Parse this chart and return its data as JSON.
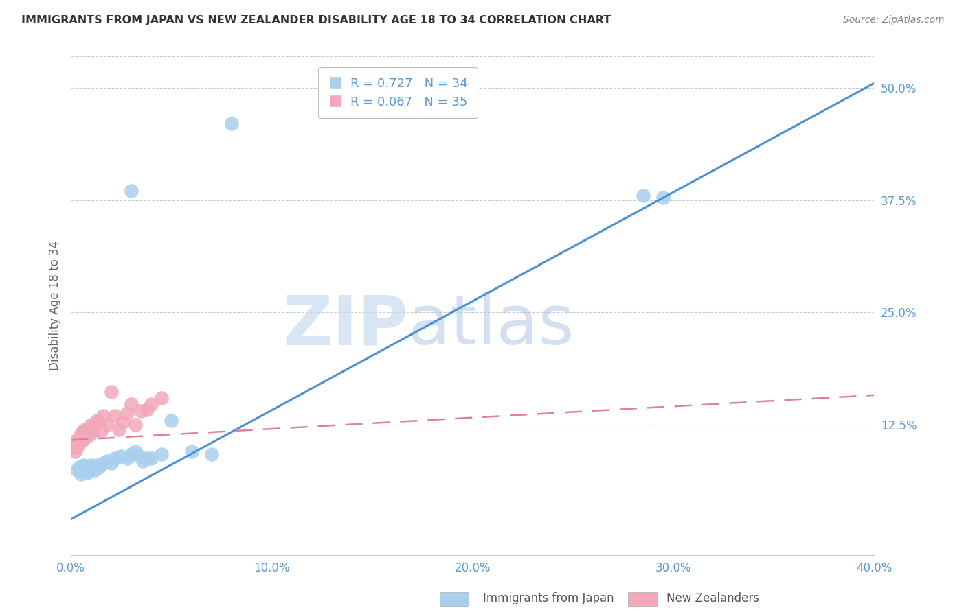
{
  "title": "IMMIGRANTS FROM JAPAN VS NEW ZEALANDER DISABILITY AGE 18 TO 34 CORRELATION CHART",
  "source": "Source: ZipAtlas.com",
  "ylabel": "Disability Age 18 to 34",
  "xlim": [
    0.0,
    0.4
  ],
  "ylim": [
    -0.02,
    0.535
  ],
  "xticks": [
    0.0,
    0.1,
    0.2,
    0.3,
    0.4
  ],
  "yticks_right": [
    0.125,
    0.25,
    0.375,
    0.5
  ],
  "ytick_labels_right": [
    "12.5%",
    "25.0%",
    "37.5%",
    "50.0%"
  ],
  "xtick_labels": [
    "0.0%",
    "10.0%",
    "20.0%",
    "30.0%",
    "40.0%"
  ],
  "blue_R": 0.727,
  "blue_N": 34,
  "pink_R": 0.067,
  "pink_N": 35,
  "legend_label_blue": "Immigrants from Japan",
  "legend_label_pink": "New Zealanders",
  "blue_color": "#A8CFEE",
  "pink_color": "#F2A8B8",
  "blue_line_color": "#4A90D9",
  "pink_line_color": "#E08098",
  "background_color": "#ffffff",
  "watermark_zip": "ZIP",
  "watermark_atlas": "atlas",
  "blue_scatter_x": [
    0.003,
    0.004,
    0.005,
    0.005,
    0.006,
    0.007,
    0.008,
    0.009,
    0.01,
    0.011,
    0.012,
    0.013,
    0.014,
    0.015,
    0.016,
    0.018,
    0.02,
    0.022,
    0.025,
    0.028,
    0.03,
    0.032,
    0.034,
    0.036,
    0.038,
    0.04,
    0.045,
    0.05,
    0.06,
    0.07,
    0.08,
    0.03,
    0.285,
    0.295
  ],
  "blue_scatter_y": [
    0.075,
    0.078,
    0.075,
    0.07,
    0.08,
    0.078,
    0.072,
    0.075,
    0.08,
    0.078,
    0.075,
    0.08,
    0.078,
    0.08,
    0.082,
    0.085,
    0.082,
    0.088,
    0.09,
    0.088,
    0.092,
    0.095,
    0.09,
    0.085,
    0.088,
    0.088,
    0.092,
    0.13,
    0.095,
    0.092,
    0.46,
    0.385,
    0.38,
    0.378
  ],
  "pink_scatter_x": [
    0.002,
    0.002,
    0.003,
    0.003,
    0.004,
    0.004,
    0.005,
    0.005,
    0.006,
    0.006,
    0.007,
    0.007,
    0.008,
    0.008,
    0.009,
    0.01,
    0.01,
    0.011,
    0.012,
    0.013,
    0.014,
    0.015,
    0.016,
    0.018,
    0.02,
    0.022,
    0.024,
    0.026,
    0.028,
    0.03,
    0.032,
    0.035,
    0.038,
    0.04,
    0.045
  ],
  "pink_scatter_y": [
    0.095,
    0.1,
    0.1,
    0.108,
    0.105,
    0.11,
    0.11,
    0.115,
    0.108,
    0.118,
    0.115,
    0.12,
    0.112,
    0.118,
    0.12,
    0.115,
    0.125,
    0.118,
    0.125,
    0.13,
    0.128,
    0.118,
    0.135,
    0.125,
    0.162,
    0.135,
    0.12,
    0.128,
    0.138,
    0.148,
    0.125,
    0.14,
    0.142,
    0.148,
    0.155
  ],
  "blue_line_x": [
    0.0,
    0.4
  ],
  "blue_line_y": [
    0.02,
    0.505
  ],
  "pink_line_x": [
    0.0,
    0.4
  ],
  "pink_line_y": [
    0.108,
    0.158
  ]
}
